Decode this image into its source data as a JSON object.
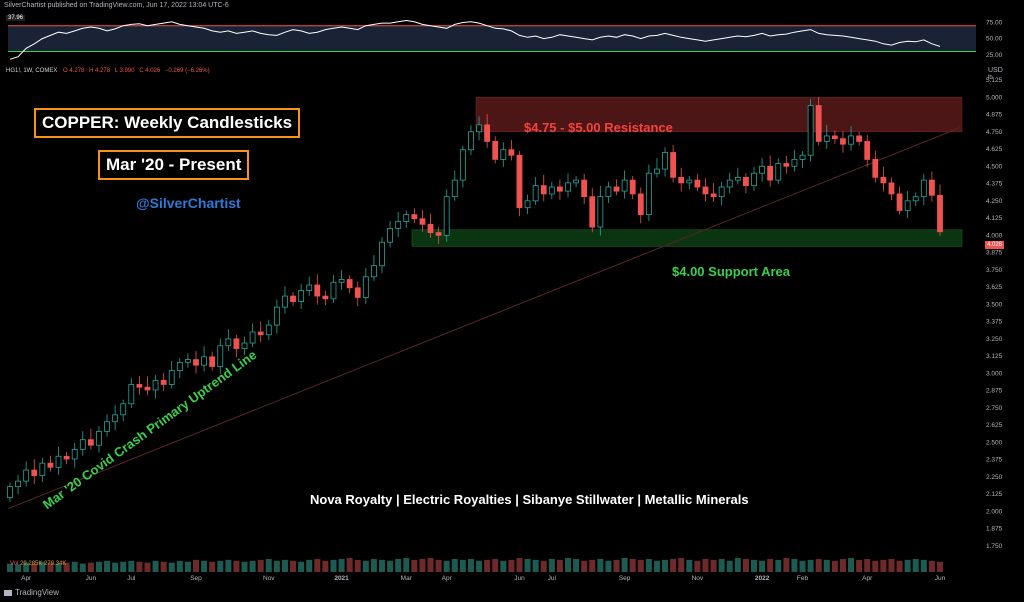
{
  "header": {
    "text": "SilverChartist published on TradingView.com, Jun 17, 2022 13:04 UTC-6"
  },
  "footer": {
    "brand": "TradingView"
  },
  "legend": {
    "symbol": "HG1!, 1W, COMEX",
    "o": "O 4.278",
    "h": "H 4.278",
    "l": "L 3.990",
    "c": "C 4.026",
    "change": "−0.269 (−6.26%)"
  },
  "volume": {
    "label": "Vol",
    "values": "29.285K 279.34K"
  },
  "rsi": {
    "value_label": "37.96",
    "levels": [
      75,
      50,
      25
    ],
    "level_labels": [
      "75.00",
      "50.00",
      "25.00"
    ],
    "upper_line": 70,
    "lower_line": 30
  },
  "annotations": {
    "title1": "COPPER: Weekly Candlesticks",
    "title2": "Mar '20 - Present",
    "handle": "@SilverChartist",
    "resistance": "$4.75 - $5.00 Resistance",
    "support": "$4.00 Support Area",
    "trendline": "Mar '20 Covid Crash Primary Uptrend Line",
    "companies": "Nova Royalty | Electric Royalties | Sibanye Stillwater | Metallic Minerals"
  },
  "colors": {
    "up": "#26a69a",
    "down": "#ef5350",
    "resistance_zone": "#5a1a1a",
    "support_zone": "#0d3b12",
    "rsi_line": "#ffffff",
    "rsi_bg": "#1a2236"
  },
  "price_tag": "4.026",
  "chart_data": {
    "type": "candlestick",
    "ylabel": "USD",
    "yunit": "lb",
    "ylim": [
      1.5,
      5.25
    ],
    "yticks": [
      "5.125",
      "5.000",
      "4.875",
      "4.750",
      "4.625",
      "4.500",
      "4.375",
      "4.250",
      "4.125",
      "4.000",
      "3.875",
      "3.750",
      "3.625",
      "3.500",
      "3.375",
      "3.250",
      "3.125",
      "3.000",
      "2.875",
      "2.750",
      "2.625",
      "2.500",
      "2.375",
      "2.250",
      "2.125",
      "2.000",
      "1.875",
      "1.750"
    ],
    "ytick_values": [
      5.125,
      5.0,
      4.875,
      4.75,
      4.625,
      4.5,
      4.375,
      4.25,
      4.125,
      4.0,
      3.875,
      3.75,
      3.625,
      3.5,
      3.375,
      3.25,
      3.125,
      3.0,
      2.875,
      2.75,
      2.625,
      2.5,
      2.375,
      2.25,
      2.125,
      2.0,
      1.875,
      1.75
    ],
    "xticks": [
      {
        "label": "Apr",
        "week": 2
      },
      {
        "label": "Jun",
        "week": 10
      },
      {
        "label": "Jul",
        "week": 15
      },
      {
        "label": "Sep",
        "week": 23
      },
      {
        "label": "Nov",
        "week": 32
      },
      {
        "label": "2021",
        "week": 41
      },
      {
        "label": "Mar",
        "week": 49
      },
      {
        "label": "Apr",
        "week": 54
      },
      {
        "label": "Jun",
        "week": 63
      },
      {
        "label": "Jul",
        "week": 67
      },
      {
        "label": "Sep",
        "week": 76
      },
      {
        "label": "Nov",
        "week": 85
      },
      {
        "label": "2022",
        "week": 93
      },
      {
        "label": "Feb",
        "week": 98
      },
      {
        "label": "Apr",
        "week": 106
      },
      {
        "label": "Jun",
        "week": 115
      }
    ],
    "resistance_zone": [
      4.75,
      5.0
    ],
    "support_zone": [
      3.92,
      4.04
    ],
    "closes": [
      2.18,
      2.22,
      2.3,
      2.26,
      2.35,
      2.32,
      2.4,
      2.38,
      2.45,
      2.52,
      2.48,
      2.58,
      2.65,
      2.7,
      2.78,
      2.92,
      2.9,
      2.88,
      2.95,
      2.92,
      3.02,
      3.08,
      3.1,
      3.06,
      3.12,
      3.05,
      3.2,
      3.25,
      3.18,
      3.22,
      3.3,
      3.28,
      3.35,
      3.48,
      3.56,
      3.52,
      3.6,
      3.64,
      3.56,
      3.54,
      3.66,
      3.68,
      3.62,
      3.55,
      3.7,
      3.78,
      3.95,
      4.05,
      4.1,
      4.15,
      4.12,
      4.08,
      4.02,
      4.0,
      4.28,
      4.4,
      4.62,
      4.75,
      4.8,
      4.68,
      4.55,
      4.62,
      4.58,
      4.2,
      4.25,
      4.36,
      4.3,
      4.35,
      4.32,
      4.38,
      4.4,
      4.28,
      4.06,
      4.28,
      4.35,
      4.32,
      4.4,
      4.3,
      4.15,
      4.45,
      4.48,
      4.6,
      4.42,
      4.38,
      4.4,
      4.35,
      4.3,
      4.28,
      4.35,
      4.4,
      4.42,
      4.36,
      4.45,
      4.5,
      4.4,
      4.52,
      4.5,
      4.55,
      4.58,
      4.94,
      4.68,
      4.72,
      4.7,
      4.66,
      4.72,
      4.68,
      4.55,
      4.42,
      4.38,
      4.3,
      4.18,
      4.25,
      4.28,
      4.4,
      4.29,
      4.026
    ],
    "rsi_values": [
      18,
      22,
      35,
      42,
      50,
      55,
      60,
      58,
      62,
      66,
      68,
      66,
      62,
      65,
      70,
      72,
      73,
      70,
      72,
      74,
      76,
      72,
      70,
      68,
      66,
      62,
      60,
      62,
      58,
      60,
      62,
      58,
      56,
      55,
      60,
      64,
      62,
      58,
      60,
      64,
      66,
      68,
      66,
      64,
      70,
      72,
      74,
      74,
      76,
      78,
      76,
      72,
      70,
      68,
      66,
      72,
      75,
      76,
      74,
      70,
      66,
      65,
      62,
      55,
      52,
      54,
      50,
      52,
      56,
      54,
      52,
      50,
      48,
      52,
      54,
      52,
      56,
      54,
      50,
      54,
      55,
      58,
      55,
      52,
      50,
      48,
      46,
      48,
      50,
      52,
      54,
      53,
      55,
      58,
      54,
      56,
      57,
      60,
      62,
      64,
      58,
      56,
      55,
      54,
      52,
      50,
      48,
      46,
      42,
      40,
      44,
      46,
      45,
      48,
      42,
      38
    ],
    "volume_values": [
      9,
      8,
      10,
      9,
      11,
      10,
      9,
      10,
      11,
      9,
      10,
      11,
      12,
      10,
      11,
      12,
      11,
      10,
      12,
      11,
      10,
      12,
      11,
      13,
      12,
      11,
      12,
      13,
      12,
      11,
      12,
      13,
      14,
      12,
      13,
      12,
      11,
      13,
      14,
      12,
      13,
      14,
      15,
      13,
      12,
      14,
      13,
      12,
      14,
      15,
      13,
      14,
      15,
      13,
      12,
      14,
      13,
      14,
      12,
      13,
      14,
      12,
      13,
      15,
      14,
      13,
      12,
      14,
      13,
      15,
      14,
      12,
      13,
      14,
      12,
      13,
      15,
      14,
      13,
      14,
      12,
      13,
      14,
      15,
      13,
      12,
      14,
      13,
      14,
      12,
      15,
      14,
      13,
      12,
      14,
      13,
      15,
      14,
      12,
      13,
      14,
      13,
      12,
      14,
      15,
      13,
      14,
      12,
      13,
      14,
      12,
      13,
      14,
      13,
      12,
      11
    ]
  }
}
